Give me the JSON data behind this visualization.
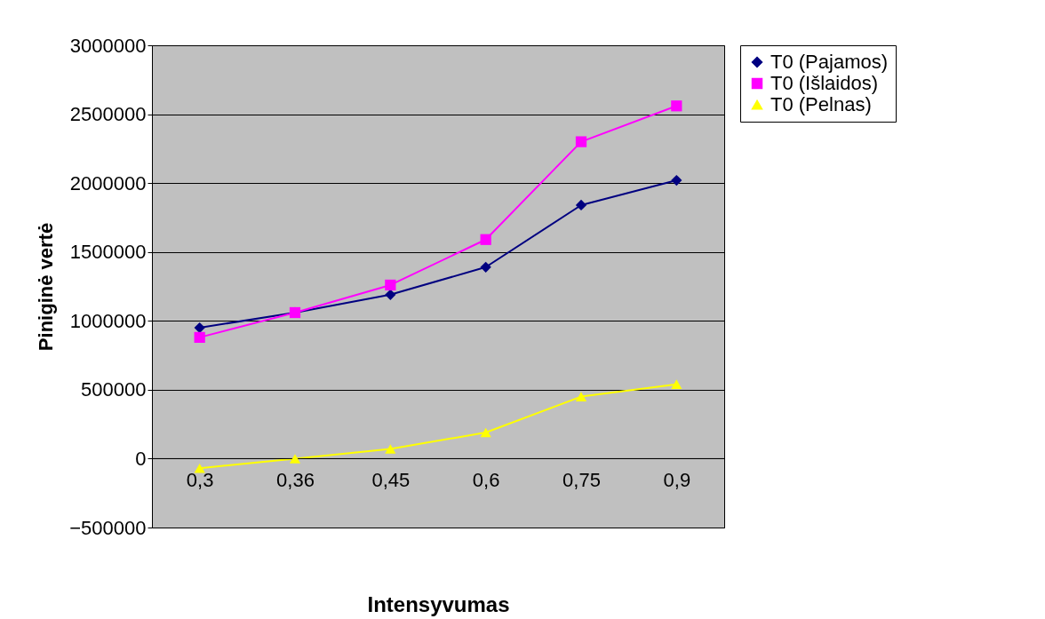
{
  "chart_data": {
    "type": "line",
    "xlabel": "Intensyvumas",
    "ylabel": "Piniginė vertė",
    "categories": [
      "0,3",
      "0,36",
      "0,45",
      "0,6",
      "0,75",
      "0,9"
    ],
    "series": [
      {
        "name": "T0 (Pajamos)",
        "color": "#000080",
        "marker": "diamond",
        "values": [
          950000,
          1060000,
          1190000,
          1390000,
          1840000,
          2020000
        ]
      },
      {
        "name": "T0 (Išlaidos)",
        "color": "#ff00ff",
        "marker": "square",
        "values": [
          880000,
          1060000,
          1260000,
          1590000,
          2300000,
          2560000
        ]
      },
      {
        "name": "T0 (Pelnas)",
        "color": "#ffff00",
        "marker": "triangle",
        "values": [
          -70000,
          0,
          70000,
          190000,
          450000,
          540000
        ]
      }
    ],
    "ylim": [
      -500000,
      3000000
    ],
    "yticks": [
      -500000,
      0,
      500000,
      1000000,
      1500000,
      2000000,
      2500000,
      3000000
    ],
    "grid": "y",
    "legend": "right",
    "line_style": "solid"
  }
}
